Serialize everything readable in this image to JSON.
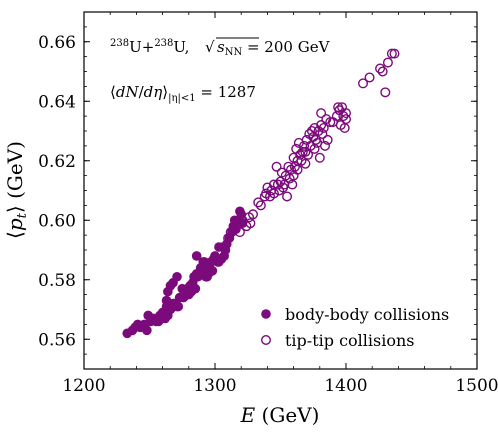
{
  "chart_data": {
    "type": "scatter",
    "xlabel": "E (GeV)",
    "ylabel": "⟨pt⟩ (GeV)",
    "xlim": [
      1200,
      1500
    ],
    "ylim": [
      0.55,
      0.67
    ],
    "x_ticks": [
      "1200",
      "1300",
      "1400",
      "1500"
    ],
    "y_ticks": [
      "0.56",
      "0.58",
      "0.60",
      "0.62",
      "0.64",
      "0.66"
    ],
    "annotations": {
      "system": "238U+238U, √sNN = 200 GeV",
      "multiplicity": "⟨dN/dη⟩|η|<1 = 1287"
    },
    "legend_position": "lower-right",
    "series": [
      {
        "name": "body-body collisions",
        "marker": "filled-circle",
        "color": "#7b0a7b",
        "points": [
          [
            1233,
            0.562
          ],
          [
            1237,
            0.563
          ],
          [
            1239,
            0.564
          ],
          [
            1241,
            0.565
          ],
          [
            1243,
            0.564
          ],
          [
            1246,
            0.565
          ],
          [
            1248,
            0.563
          ],
          [
            1249,
            0.568
          ],
          [
            1251,
            0.566
          ],
          [
            1253,
            0.567
          ],
          [
            1255,
            0.566
          ],
          [
            1257,
            0.566
          ],
          [
            1258,
            0.568
          ],
          [
            1260,
            0.569
          ],
          [
            1262,
            0.567
          ],
          [
            1263,
            0.571
          ],
          [
            1264,
            0.568
          ],
          [
            1266,
            0.57
          ],
          [
            1268,
            0.572
          ],
          [
            1269,
            0.572
          ],
          [
            1271,
            0.571
          ],
          [
            1272,
            0.571
          ],
          [
            1273,
            0.574
          ],
          [
            1276,
            0.574
          ],
          [
            1275,
            0.577
          ],
          [
            1263,
            0.573
          ],
          [
            1264,
            0.576
          ],
          [
            1266,
            0.578
          ],
          [
            1268,
            0.579
          ],
          [
            1271,
            0.581
          ],
          [
            1278,
            0.576
          ],
          [
            1279,
            0.577
          ],
          [
            1280,
            0.575
          ],
          [
            1281,
            0.578
          ],
          [
            1282,
            0.576
          ],
          [
            1283,
            0.579
          ],
          [
            1284,
            0.581
          ],
          [
            1285,
            0.577
          ],
          [
            1286,
            0.582
          ],
          [
            1287,
            0.581
          ],
          [
            1289,
            0.584
          ],
          [
            1290,
            0.583
          ],
          [
            1291,
            0.586
          ],
          [
            1292,
            0.586
          ],
          [
            1293,
            0.581
          ],
          [
            1294,
            0.581
          ],
          [
            1295,
            0.582
          ],
          [
            1296,
            0.584
          ],
          [
            1297,
            0.586
          ],
          [
            1298,
            0.583
          ],
          [
            1299,
            0.587
          ],
          [
            1300,
            0.588
          ],
          [
            1302,
            0.586
          ],
          [
            1303,
            0.586
          ],
          [
            1305,
            0.587
          ],
          [
            1307,
            0.588
          ],
          [
            1303,
            0.591
          ],
          [
            1306,
            0.591
          ],
          [
            1308,
            0.59
          ],
          [
            1309,
            0.592
          ],
          [
            1311,
            0.594
          ],
          [
            1313,
            0.596
          ],
          [
            1314,
            0.598
          ],
          [
            1315,
            0.6
          ],
          [
            1316,
            0.597
          ],
          [
            1318,
            0.6
          ],
          [
            1319,
            0.603
          ],
          [
            1320,
            0.602
          ],
          [
            1321,
            0.599
          ],
          [
            1286,
            0.588
          ]
        ]
      },
      {
        "name": "tip-tip collisions",
        "marker": "open-circle",
        "color": "#7b0a7b",
        "points": [
          [
            1310,
            0.594
          ],
          [
            1312,
            0.596
          ],
          [
            1315,
            0.597
          ],
          [
            1317,
            0.599
          ],
          [
            1319,
            0.596
          ],
          [
            1321,
            0.6
          ],
          [
            1324,
            0.598
          ],
          [
            1326,
            0.601
          ],
          [
            1327,
            0.599
          ],
          [
            1329,
            0.602
          ],
          [
            1333,
            0.606
          ],
          [
            1335,
            0.605
          ],
          [
            1338,
            0.608
          ],
          [
            1339,
            0.609
          ],
          [
            1340,
            0.611
          ],
          [
            1342,
            0.608
          ],
          [
            1343,
            0.61
          ],
          [
            1345,
            0.612
          ],
          [
            1345,
            0.609
          ],
          [
            1347,
            0.618
          ],
          [
            1348,
            0.612
          ],
          [
            1349,
            0.61
          ],
          [
            1350,
            0.613
          ],
          [
            1351,
            0.616
          ],
          [
            1352,
            0.611
          ],
          [
            1353,
            0.612
          ],
          [
            1354,
            0.615
          ],
          [
            1355,
            0.608
          ],
          [
            1356,
            0.618
          ],
          [
            1357,
            0.614
          ],
          [
            1358,
            0.617
          ],
          [
            1359,
            0.612
          ],
          [
            1360,
            0.621
          ],
          [
            1360,
            0.615
          ],
          [
            1361,
            0.618
          ],
          [
            1362,
            0.624
          ],
          [
            1363,
            0.62
          ],
          [
            1363,
            0.617
          ],
          [
            1364,
            0.626
          ],
          [
            1365,
            0.622
          ],
          [
            1366,
            0.62
          ],
          [
            1367,
            0.623
          ],
          [
            1368,
            0.625
          ],
          [
            1369,
            0.623
          ],
          [
            1369,
            0.619
          ],
          [
            1370,
            0.627
          ],
          [
            1371,
            0.622
          ],
          [
            1372,
            0.629
          ],
          [
            1373,
            0.625
          ],
          [
            1374,
            0.63
          ],
          [
            1375,
            0.628
          ],
          [
            1376,
            0.631
          ],
          [
            1376,
            0.624
          ],
          [
            1377,
            0.627
          ],
          [
            1378,
            0.626
          ],
          [
            1379,
            0.63
          ],
          [
            1380,
            0.621
          ],
          [
            1381,
            0.632
          ],
          [
            1381,
            0.636
          ],
          [
            1382,
            0.629
          ],
          [
            1383,
            0.631
          ],
          [
            1384,
            0.625
          ],
          [
            1385,
            0.634
          ],
          [
            1386,
            0.627
          ],
          [
            1388,
            0.633
          ],
          [
            1390,
            0.633
          ],
          [
            1393,
            0.635
          ],
          [
            1394,
            0.638
          ],
          [
            1395,
            0.637
          ],
          [
            1396,
            0.632
          ],
          [
            1397,
            0.638
          ],
          [
            1398,
            0.635
          ],
          [
            1399,
            0.631
          ],
          [
            1400,
            0.636
          ],
          [
            1400,
            0.634
          ],
          [
            1413,
            0.646
          ],
          [
            1418,
            0.648
          ],
          [
            1426,
            0.651
          ],
          [
            1428,
            0.65
          ],
          [
            1430,
            0.643
          ],
          [
            1432,
            0.653
          ],
          [
            1435,
            0.656
          ],
          [
            1437,
            0.656
          ]
        ]
      }
    ]
  }
}
